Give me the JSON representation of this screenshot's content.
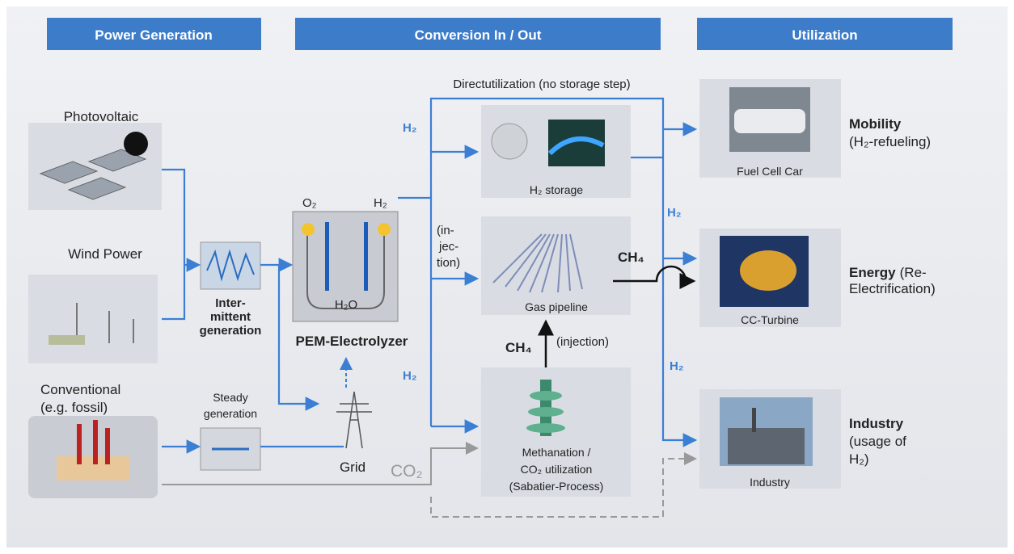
{
  "headers": [
    "Power Generation",
    "Conversion In / Out",
    "Utilization"
  ],
  "sources": {
    "photovoltaic": "Photovoltaic",
    "wind": "Wind Power",
    "conventional": [
      "Conventional",
      "(e.g. fossil)"
    ]
  },
  "intermittent": [
    "Inter-",
    "mittent",
    "generation"
  ],
  "steady": [
    "Steady",
    "generation"
  ],
  "electrolyzer": {
    "title": "PEM-Electrolyzer",
    "o2": "O₂",
    "h2": "H₂",
    "h2o": "H₂O"
  },
  "grid": "Grid",
  "co2": "CO₂",
  "direct": "Directutilization (no storage step)",
  "flow_labels": {
    "h2_storage_in": "H₂",
    "h2_methanation_in": "H₂",
    "injection": [
      "(in-",
      "jec-",
      "tion)"
    ],
    "ch4_out": "CH₄",
    "ch4_up": "CH₄",
    "injection_up": "(injection)",
    "h2_energy": "H₂",
    "h2_industry": "H₂"
  },
  "storage": "H₂ storage",
  "pipeline": "Gas pipeline",
  "methanation": [
    "Methanation /",
    "CO₂ utilization",
    "(Sabatier-Process)"
  ],
  "utilization": [
    {
      "image": "Fuel Cell Car",
      "title": "Mobility",
      "detail": [
        "(H₂-refueling)"
      ]
    },
    {
      "image": "CC-Turbine",
      "title": "Energy",
      "detail": [
        "(Re-",
        "Electrification)"
      ]
    },
    {
      "image": "Industry",
      "title": "Industry",
      "detail": [
        "(usage of",
        "H₂)"
      ]
    }
  ]
}
